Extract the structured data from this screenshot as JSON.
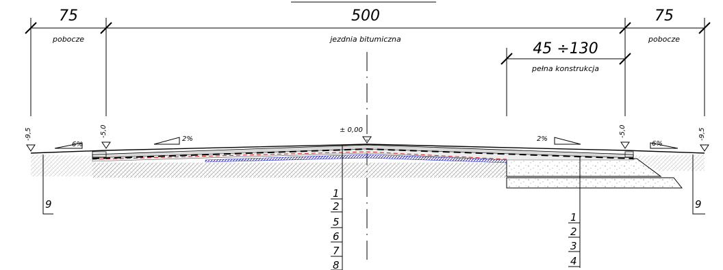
{
  "dimensions": {
    "left_shoulder_width": "75",
    "left_shoulder_label": "pobocze",
    "roadway_width": "500",
    "roadway_label": "jezdnia bitumiczna",
    "right_shoulder_width": "75",
    "right_shoulder_label": "pobocze",
    "full_construction_width": "45 ÷130",
    "full_construction_label": "pełna konstrukcja"
  },
  "elevations": {
    "left_edge": "-9,5",
    "left_road_edge": "-5,0",
    "axis": "± 0,00",
    "right_road_edge": "-5,0",
    "right_edge": "-9,5"
  },
  "slopes": {
    "left_shoulder": "6%",
    "left_roadway": "2%",
    "right_roadway": "2%",
    "right_shoulder": "6%"
  },
  "layer_refs": {
    "left_ditch": "9",
    "right_ditch": "9",
    "axis_layers": [
      "1",
      "2",
      "5",
      "6",
      "7",
      "8"
    ],
    "right_layers": [
      "1",
      "2",
      "3",
      "4"
    ]
  },
  "colors": {
    "blue_layer": "#2a2ad0",
    "red_line": "#d02020",
    "hatch": "#9a9a9a"
  }
}
